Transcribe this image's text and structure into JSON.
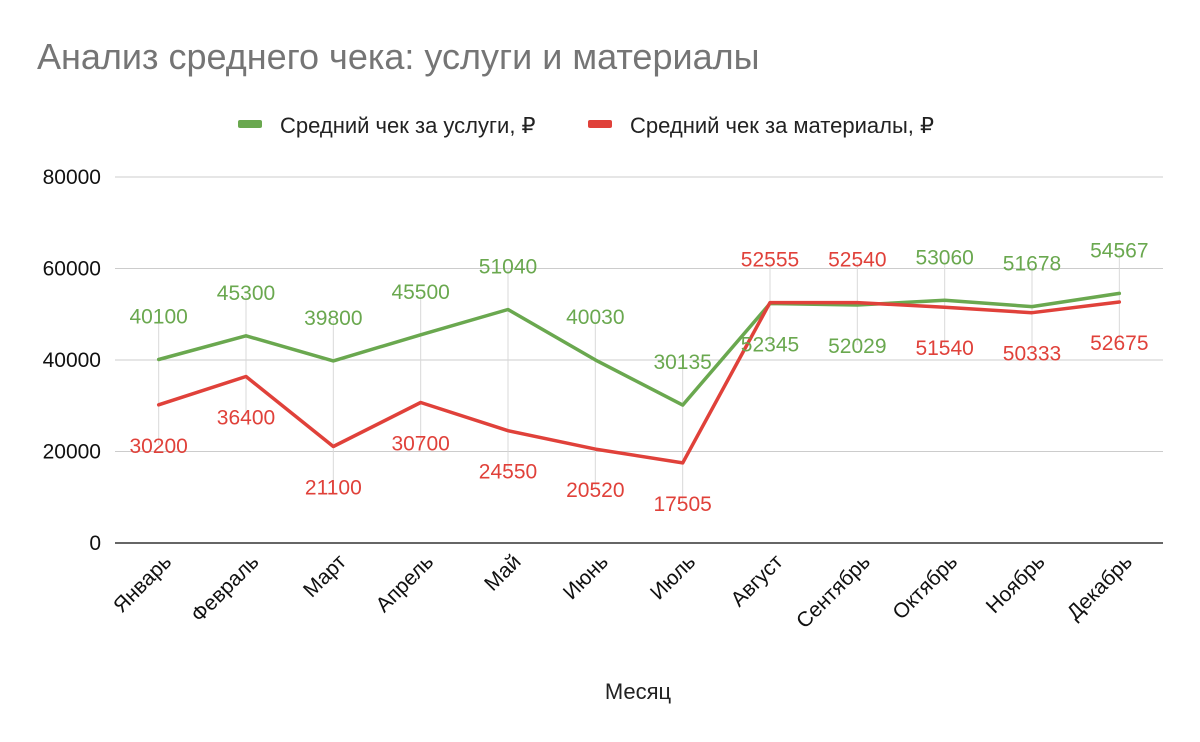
{
  "title": "Анализ среднего чека: услуги и материалы",
  "legend": [
    {
      "label": "Средний чек за услуги, ₽",
      "color": "#6aa84f"
    },
    {
      "label": "Средний чек за материалы, ₽",
      "color": "#e0413a"
    }
  ],
  "chart_data": {
    "type": "line",
    "title": "Анализ среднего чека: услуги и материалы",
    "xlabel": "Месяц",
    "ylabel": "",
    "categories": [
      "Январь",
      "Февраль",
      "Март",
      "Апрель",
      "Май",
      "Июнь",
      "Июль",
      "Август",
      "Сентябрь",
      "Октябрь",
      "Ноябрь",
      "Декабрь"
    ],
    "ylim": [
      0,
      80000
    ],
    "yticks": [
      0,
      20000,
      40000,
      60000,
      80000
    ],
    "grid": true,
    "legend_position": "top",
    "series": [
      {
        "name": "Средний чек за услуги, ₽",
        "color": "#6aa84f",
        "values": [
          40100,
          45300,
          39800,
          45500,
          51040,
          40030,
          30135,
          52345,
          52029,
          53060,
          51678,
          54567
        ]
      },
      {
        "name": "Средний чек за материалы, ₽",
        "color": "#e0413a",
        "values": [
          30200,
          36400,
          21100,
          30700,
          24550,
          20520,
          17505,
          52555,
          52540,
          51540,
          50333,
          52675
        ]
      }
    ]
  }
}
